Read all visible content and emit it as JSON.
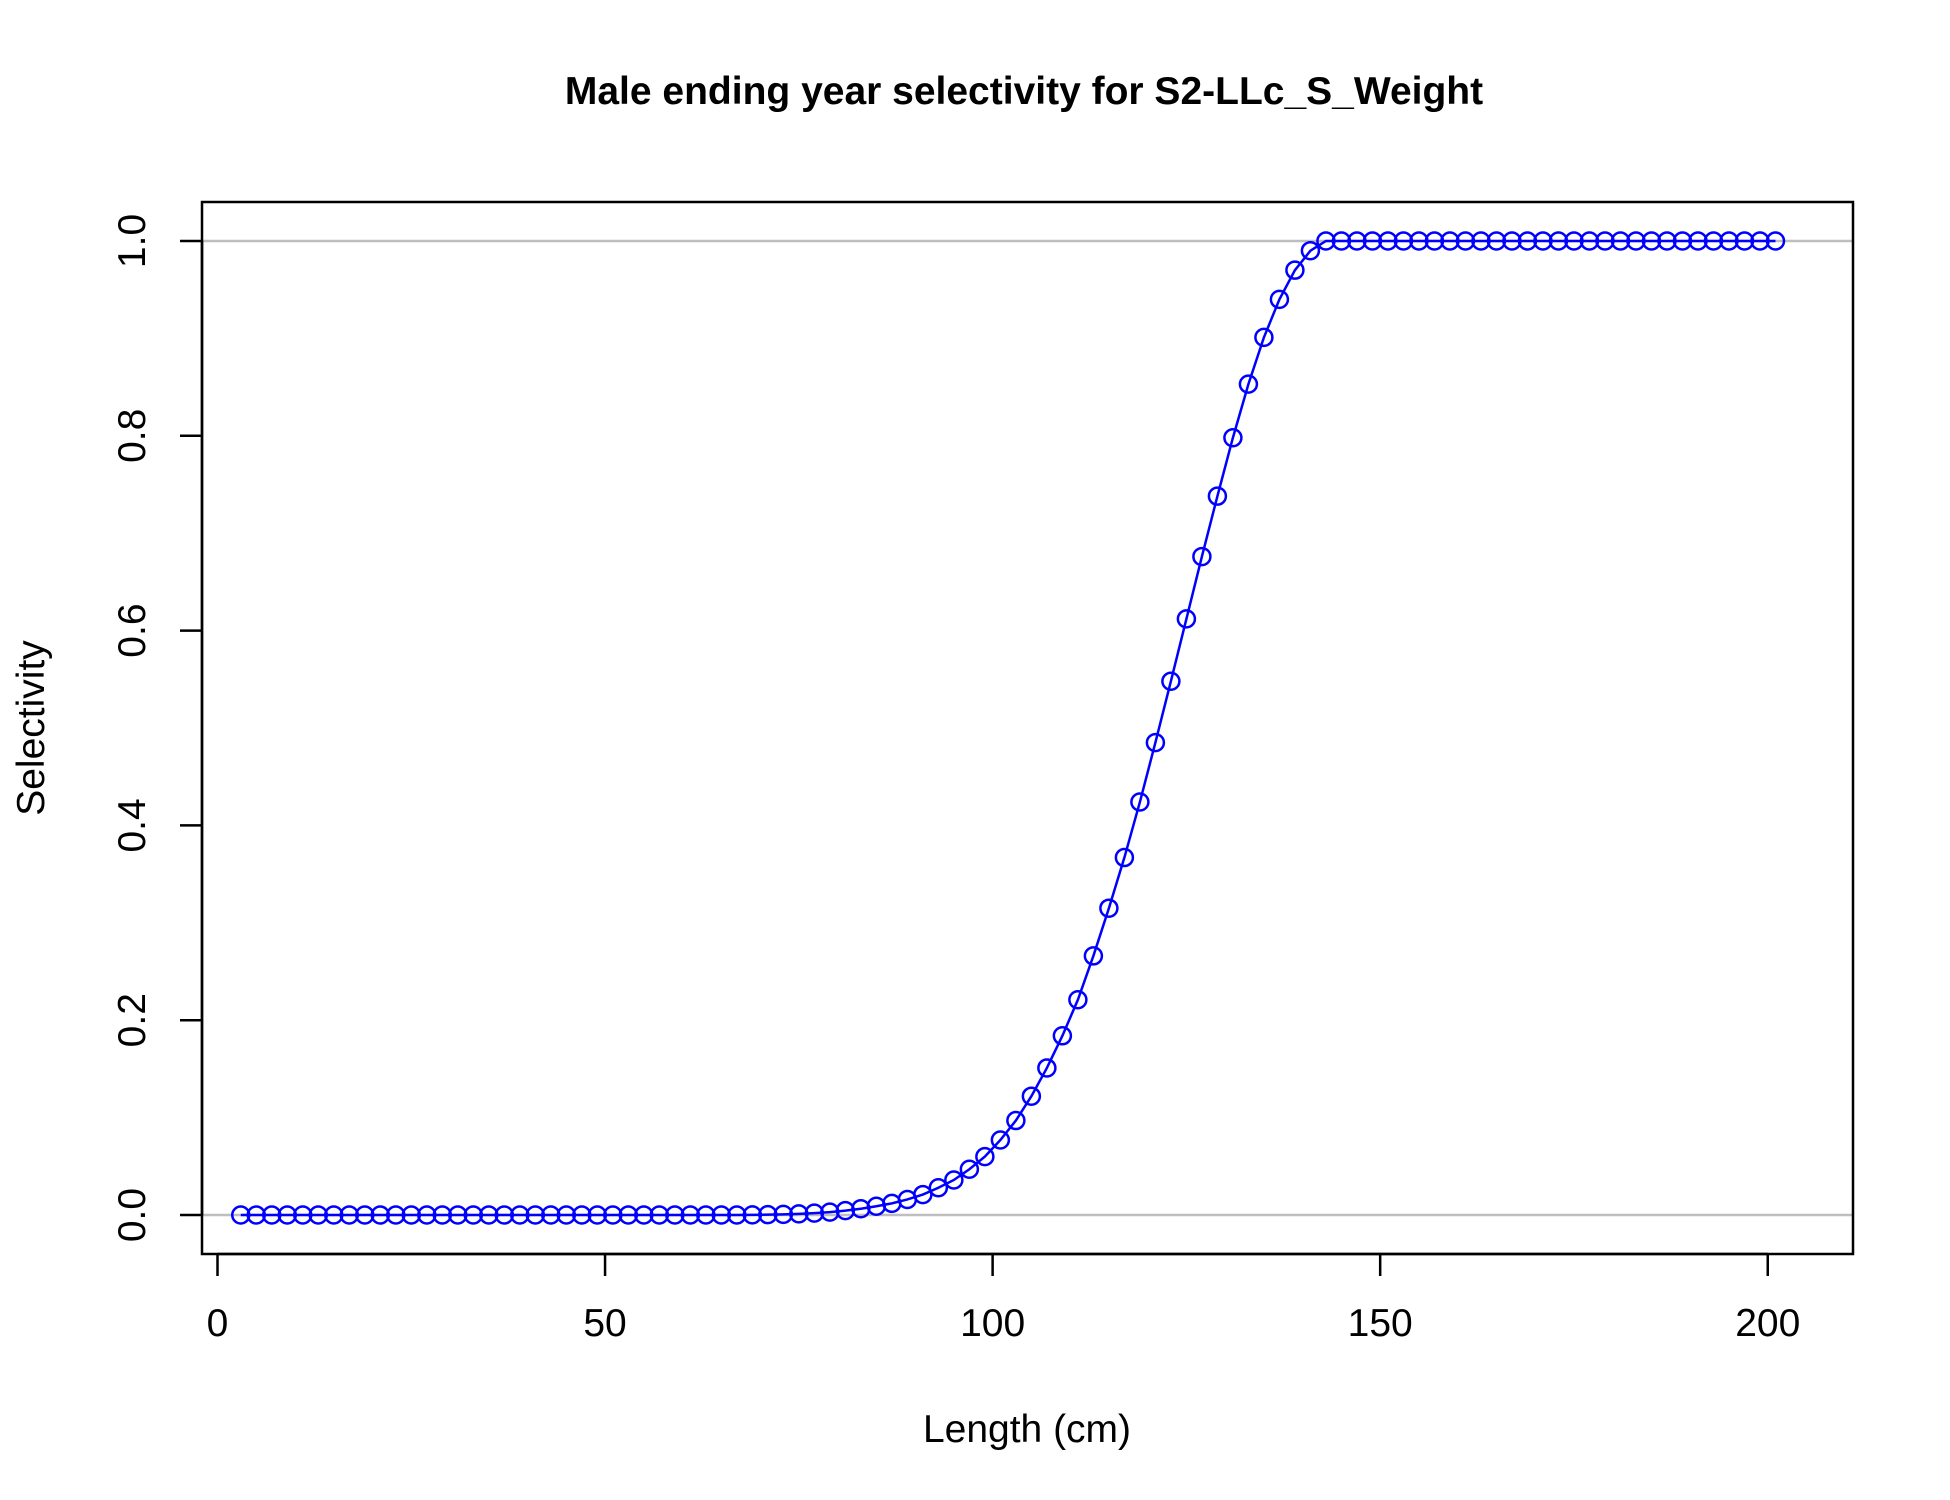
{
  "chart_data": {
    "type": "line",
    "title": "Male ending year selectivity for S2-LLc_S_Weight",
    "xlabel": "Length (cm)",
    "ylabel": "Selectivity",
    "xlim": [
      -2,
      211
    ],
    "ylim": [
      -0.04,
      1.04
    ],
    "x_ticks": [
      0,
      50,
      100,
      150,
      200
    ],
    "x_tick_labels": [
      "0",
      "50",
      "100",
      "150",
      "200"
    ],
    "y_ticks": [
      0.0,
      0.2,
      0.4,
      0.6,
      0.8,
      1.0
    ],
    "y_tick_labels": [
      "0.0",
      "0.2",
      "0.4",
      "0.6",
      "0.8",
      "1.0"
    ],
    "reference_lines": [
      0,
      1
    ],
    "reference_line_color": "#bebebe",
    "series_color": "#0000ff",
    "marker": "open-circle",
    "grid": false,
    "x": [
      3,
      5,
      7,
      9,
      11,
      13,
      15,
      17,
      19,
      21,
      23,
      25,
      27,
      29,
      31,
      33,
      35,
      37,
      39,
      41,
      43,
      45,
      47,
      49,
      51,
      53,
      55,
      57,
      59,
      61,
      63,
      65,
      67,
      69,
      71,
      73,
      75,
      77,
      79,
      81,
      83,
      85,
      87,
      89,
      91,
      93,
      95,
      97,
      99,
      101,
      103,
      105,
      107,
      109,
      111,
      113,
      115,
      117,
      119,
      121,
      123,
      125,
      127,
      129,
      131,
      133,
      135,
      137,
      139,
      141,
      143,
      145,
      147,
      149,
      151,
      153,
      155,
      157,
      159,
      161,
      163,
      165,
      167,
      169,
      171,
      173,
      175,
      177,
      179,
      181,
      183,
      185,
      187,
      189,
      191,
      193,
      195,
      197,
      199,
      201
    ],
    "y": [
      0,
      0,
      0,
      0,
      0,
      0,
      0,
      0,
      0,
      0,
      0,
      0,
      0,
      0,
      0,
      0,
      0,
      0,
      0,
      0,
      0,
      0,
      0,
      0,
      0,
      0,
      0,
      0,
      0,
      0,
      0,
      0,
      0,
      0.0002,
      0.0004,
      0.0007,
      0.0012,
      0.002,
      0.003,
      0.0045,
      0.0065,
      0.009,
      0.012,
      0.016,
      0.021,
      0.028,
      0.036,
      0.047,
      0.06,
      0.077,
      0.097,
      0.122,
      0.151,
      0.184,
      0.221,
      0.266,
      0.315,
      0.367,
      0.424,
      0.485,
      0.548,
      0.612,
      0.676,
      0.738,
      0.798,
      0.853,
      0.901,
      0.94,
      0.97,
      0.99,
      1,
      1,
      1,
      1,
      1,
      1,
      1,
      1,
      1,
      1,
      1,
      1,
      1,
      1,
      1,
      1,
      1,
      1,
      1,
      1,
      1,
      1,
      1,
      1,
      1,
      1,
      1,
      1,
      1,
      1
    ]
  }
}
